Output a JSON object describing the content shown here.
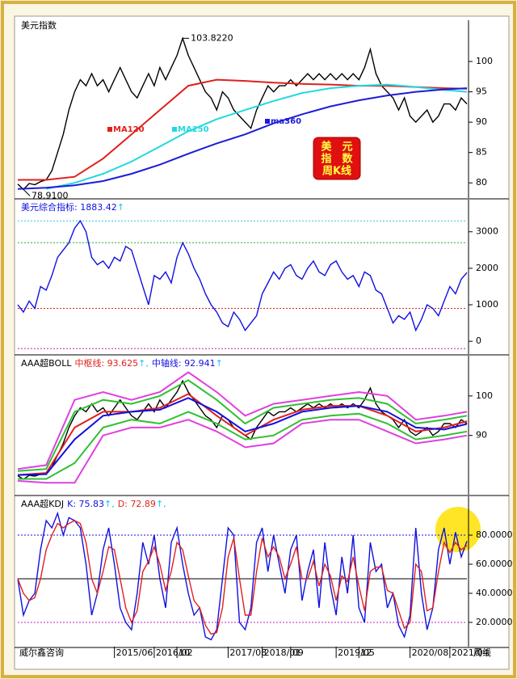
{
  "title": "美元指数",
  "watermark": "威尔鑫咨询",
  "period": "周线",
  "chart_data": [
    {
      "type": "line",
      "ylim": [
        77.5,
        106.8
      ],
      "yticks": [
        80,
        85,
        90,
        95,
        100
      ],
      "stamp": [
        "美　元",
        "指　数",
        "周K线"
      ],
      "series": [
        {
          "color": "#000000",
          "values": [
            79.8,
            78.91,
            79.9,
            79.7,
            80.2,
            80.5,
            82,
            85,
            88,
            92,
            95,
            97,
            96,
            98,
            96,
            97,
            95,
            97,
            99,
            97,
            95,
            94,
            96,
            98,
            96,
            99,
            97,
            99,
            101,
            103.822,
            101,
            99,
            97,
            95,
            94,
            92,
            95,
            94,
            92,
            91,
            90,
            89,
            92,
            94,
            96,
            95,
            96,
            96,
            97,
            96,
            97,
            98,
            97,
            98,
            97,
            98,
            97,
            98,
            97,
            98,
            97,
            99,
            102,
            98,
            96,
            95,
            94,
            92,
            94,
            91,
            90,
            91,
            92,
            90,
            91,
            93,
            93,
            92,
            94,
            93
          ]
        },
        {
          "name": "MA120",
          "color": "#e0201c",
          "x": [
            0,
            5,
            10,
            15,
            20,
            25,
            30,
            35,
            40,
            45,
            50,
            55,
            60,
            65,
            70,
            75,
            79
          ],
          "values": [
            80.5,
            80.5,
            81,
            84,
            88,
            92,
            96,
            97,
            96.8,
            96.5,
            96.3,
            96.2,
            96,
            96,
            95.8,
            95.6,
            95.5
          ]
        },
        {
          "name": "MA250",
          "color": "#22d8e0",
          "x": [
            0,
            5,
            10,
            15,
            20,
            25,
            30,
            35,
            40,
            45,
            50,
            55,
            60,
            65,
            70,
            75,
            79
          ],
          "values": [
            null,
            79,
            80,
            81.5,
            83.5,
            86,
            88.5,
            90.5,
            92,
            93.5,
            94.8,
            95.6,
            96,
            96.2,
            95.8,
            95.3,
            95
          ]
        },
        {
          "name": "ma360",
          "color": "#1c1cd8",
          "x": [
            0,
            5,
            10,
            15,
            20,
            25,
            30,
            35,
            40,
            45,
            50,
            55,
            60,
            65,
            70,
            75,
            79
          ],
          "values": [
            79,
            79.2,
            79.6,
            80.3,
            81.5,
            83,
            84.8,
            86.5,
            88,
            89.8,
            91.3,
            92.6,
            93.6,
            94.4,
            95,
            95.4,
            95.6
          ]
        }
      ],
      "annotations": [
        {
          "text": "103.8220",
          "x": 29,
          "y": 103.822
        },
        {
          "text": "78.9100",
          "x": 1,
          "y": 78.91
        }
      ]
    },
    {
      "type": "line",
      "title": "美元综合指标: 1883.42",
      "title_arrow": "↑",
      "ylim": [
        -350,
        3880
      ],
      "yticks": [
        0,
        1000,
        2000,
        3000
      ],
      "hlines": [
        {
          "value": 3300,
          "color": "#22c8e0"
        },
        {
          "value": 2700,
          "color": "#20b020"
        },
        {
          "value": 900,
          "color": "#e0201c"
        },
        {
          "value": -200,
          "color": "#c020c0"
        }
      ],
      "series": [
        {
          "color": "#1010e0",
          "values": [
            1000,
            800,
            1100,
            900,
            1500,
            1400,
            1800,
            2300,
            2500,
            2700,
            3100,
            3300,
            3000,
            2300,
            2100,
            2200,
            2000,
            2300,
            2200,
            2600,
            2500,
            2000,
            1500,
            1000,
            1800,
            1700,
            1900,
            1600,
            2300,
            2700,
            2400,
            2000,
            1700,
            1300,
            1000,
            800,
            500,
            400,
            800,
            600,
            300,
            500,
            700,
            1300,
            1600,
            1900,
            1700,
            2000,
            2100,
            1800,
            1700,
            2000,
            2200,
            1900,
            1800,
            2100,
            2200,
            1900,
            1700,
            1800,
            1500,
            1900,
            1800,
            1400,
            1300,
            900,
            500,
            700,
            600,
            800,
            300,
            600,
            1000,
            900,
            700,
            1100,
            1500,
            1300,
            1700,
            1883.42
          ]
        }
      ]
    },
    {
      "type": "line",
      "title": "AAA超BOLL",
      "readouts": [
        {
          "text": "中枢线: 93.625",
          "arrow": "↑,",
          "color": "#e0201c"
        },
        {
          "text": "中轴线: 92.941",
          "arrow": "↑",
          "color": "#1010e0"
        }
      ],
      "ylim": [
        75,
        110.2
      ],
      "yticks": [
        90,
        100
      ],
      "series": [
        {
          "color": "#000000",
          "values": [
            79.8,
            78.91,
            79.9,
            79.7,
            80.2,
            80.5,
            82,
            85,
            88,
            92,
            95,
            97,
            96,
            98,
            96,
            97,
            95,
            97,
            99,
            97,
            95,
            94,
            96,
            98,
            96,
            99,
            97,
            99,
            101,
            103.822,
            101,
            99,
            97,
            95,
            94,
            92,
            95,
            94,
            92,
            91,
            90,
            89,
            92,
            94,
            96,
            95,
            96,
            96,
            97,
            96,
            97,
            98,
            97,
            98,
            97,
            98,
            97,
            98,
            97,
            98,
            97,
            99,
            102,
            98,
            96,
            95,
            94,
            92,
            94,
            91,
            90,
            91,
            92,
            90,
            91,
            93,
            93,
            92,
            94,
            93
          ]
        },
        {
          "color": "#e040e0",
          "x": [
            0,
            5,
            10,
            15,
            20,
            25,
            30,
            35,
            40,
            45,
            50,
            55,
            60,
            65,
            70,
            75,
            79
          ],
          "values": [
            81.5,
            82.5,
            99,
            101,
            99,
            101,
            106,
            101,
            95,
            98,
            99,
            100,
            101,
            100,
            94,
            95,
            96
          ]
        },
        {
          "color": "#e040e0",
          "x": [
            0,
            5,
            10,
            15,
            20,
            25,
            30,
            35,
            40,
            45,
            50,
            55,
            60,
            65,
            70,
            75,
            79
          ],
          "values": [
            78.5,
            78,
            78,
            90,
            92,
            92,
            94,
            91,
            87,
            88,
            93,
            94,
            94,
            91,
            88,
            89,
            90
          ]
        },
        {
          "color": "#30c030",
          "x": [
            0,
            5,
            10,
            15,
            20,
            25,
            30,
            35,
            40,
            45,
            50,
            55,
            60,
            65,
            70,
            75,
            79
          ],
          "values": [
            81,
            81.5,
            96,
            99,
            98,
            100,
            104,
            99,
            93,
            97,
            98,
            99,
            99.5,
            98,
            93,
            94,
            95
          ]
        },
        {
          "color": "#30c030",
          "x": [
            0,
            5,
            10,
            15,
            20,
            25,
            30,
            35,
            40,
            45,
            50,
            55,
            60,
            65,
            70,
            75,
            79
          ],
          "values": [
            79,
            79,
            83,
            92,
            94,
            93,
            96,
            93,
            89,
            90,
            94,
            95,
            95.5,
            93,
            89,
            90,
            91
          ]
        },
        {
          "color": "#e0201c",
          "x": [
            0,
            5,
            10,
            15,
            20,
            25,
            30,
            35,
            40,
            45,
            50,
            55,
            60,
            65,
            70,
            75,
            79
          ],
          "values": [
            80,
            80.5,
            92,
            96,
            96,
            97,
            100.5,
            95,
            90,
            94,
            96.5,
            97.5,
            97.5,
            95,
            91,
            92,
            93.6
          ]
        },
        {
          "color": "#1010e0",
          "x": [
            0,
            5,
            10,
            15,
            20,
            25,
            30,
            35,
            40,
            45,
            50,
            55,
            60,
            65,
            70,
            75,
            79
          ],
          "values": [
            80,
            80.2,
            89,
            95,
            96,
            96.5,
            99.5,
            96,
            91,
            93,
            96,
            97,
            97.5,
            96,
            92,
            91.5,
            92.9
          ]
        }
      ]
    },
    {
      "type": "line",
      "title": "AAA超KDJ",
      "readouts": [
        {
          "text": "K: 75.83",
          "arrow": "↑,",
          "color": "#1010e0"
        },
        {
          "text": "D: 72.89",
          "arrow": "↑,",
          "color": "#e0201c"
        }
      ],
      "ylim": [
        3.3,
        106.7
      ],
      "yticks": [
        {
          "value": 20,
          "label": "20.0000"
        },
        {
          "value": 40,
          "label": "40.0000"
        },
        {
          "value": 60,
          "label": "60.0000"
        },
        {
          "value": 80,
          "label": "80.0000"
        }
      ],
      "hlines": [
        {
          "value": 80,
          "color": "#1010e0"
        },
        {
          "value": 50,
          "color": "#000000"
        },
        {
          "value": 20,
          "color": "#c020c0"
        }
      ],
      "xticks": [
        {
          "value": 17,
          "label": "2015/06"
        },
        {
          "value": 24,
          "label": "2016/02"
        },
        {
          "value": 28,
          "label": "10"
        },
        {
          "value": 37,
          "label": "2017/08"
        },
        {
          "value": 43,
          "label": "2018/01"
        },
        {
          "value": 48,
          "label": "09"
        },
        {
          "value": 56,
          "label": "2019/05"
        },
        {
          "value": 60,
          "label": "12"
        },
        {
          "value": 69,
          "label": "2020/08"
        },
        {
          "value": 76,
          "label": "2021/04"
        }
      ],
      "series": [
        {
          "color": "#1010e0",
          "values": [
            50,
            25,
            35,
            40,
            70,
            90,
            85,
            95,
            80,
            92,
            90,
            85,
            60,
            25,
            40,
            70,
            85,
            60,
            30,
            20,
            15,
            40,
            75,
            60,
            80,
            50,
            30,
            75,
            85,
            60,
            40,
            25,
            30,
            10,
            8,
            15,
            50,
            85,
            80,
            20,
            15,
            30,
            75,
            85,
            55,
            80,
            60,
            40,
            70,
            80,
            35,
            55,
            70,
            30,
            75,
            45,
            25,
            65,
            40,
            80,
            30,
            20,
            75,
            55,
            60,
            30,
            40,
            18,
            10,
            25,
            85,
            40,
            15,
            30,
            70,
            85,
            60,
            82,
            65,
            75.83
          ]
        },
        {
          "color": "#e0201c",
          "values": [
            50,
            40,
            35,
            37,
            50,
            70,
            80,
            88,
            85,
            88,
            90,
            88,
            75,
            50,
            40,
            55,
            72,
            70,
            50,
            30,
            20,
            28,
            55,
            62,
            72,
            60,
            42,
            55,
            75,
            70,
            52,
            35,
            30,
            18,
            12,
            13,
            30,
            65,
            78,
            50,
            25,
            25,
            55,
            78,
            65,
            72,
            65,
            50,
            60,
            72,
            50,
            50,
            62,
            45,
            60,
            52,
            35,
            52,
            48,
            65,
            45,
            28,
            55,
            58,
            58,
            42,
            40,
            28,
            16,
            20,
            60,
            55,
            28,
            30,
            55,
            75,
            68,
            75,
            70,
            72.89
          ]
        }
      ]
    }
  ]
}
